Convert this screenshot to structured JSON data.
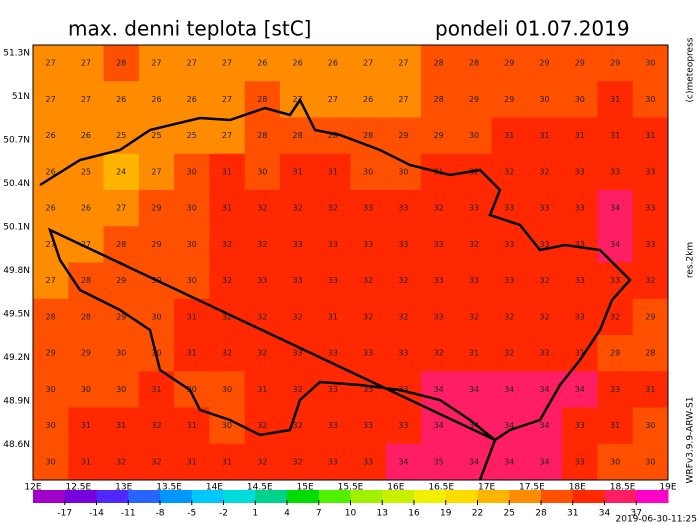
{
  "header": {
    "title": "max. denni teplota [stC]",
    "date": "pondeli 01.07.2019"
  },
  "side": {
    "copyright": "(c)meteopress",
    "resolution": "res.2km",
    "model": "WRFv3.9.9-ARW-S1",
    "run": "2019-06-30-11:25"
  },
  "map": {
    "latitude_labels": [
      "51.3N",
      "51N",
      "50.7N",
      "50.4N",
      "50.1N",
      "49.8N",
      "49.5N",
      "49.2N",
      "48.9N",
      "48.6N"
    ],
    "longitude_labels": [
      "12E",
      "12.5E",
      "13E",
      "13.5E",
      "14E",
      "14.5E",
      "15E",
      "15.5E",
      "16E",
      "16.5E",
      "17E",
      "17.5E",
      "18E",
      "18.5E",
      "19E"
    ],
    "values": [
      [
        27,
        27,
        28,
        27,
        27,
        27,
        26,
        26,
        26,
        27,
        27,
        28,
        28,
        29,
        29,
        29,
        29,
        30
      ],
      [
        27,
        27,
        26,
        26,
        26,
        27,
        28,
        27,
        27,
        26,
        27,
        28,
        29,
        29,
        30,
        30,
        31,
        30
      ],
      [
        26,
        26,
        25,
        25,
        25,
        27,
        28,
        28,
        28,
        28,
        29,
        29,
        30,
        31,
        31,
        31,
        31,
        31
      ],
      [
        26,
        25,
        24,
        27,
        30,
        31,
        30,
        31,
        31,
        30,
        30,
        31,
        32,
        32,
        32,
        33,
        33,
        33
      ],
      [
        26,
        26,
        27,
        29,
        30,
        31,
        32,
        32,
        32,
        33,
        33,
        32,
        33,
        33,
        33,
        33,
        34,
        33
      ],
      [
        27,
        27,
        28,
        29,
        30,
        32,
        32,
        33,
        33,
        33,
        33,
        33,
        32,
        33,
        33,
        33,
        34,
        33
      ],
      [
        27,
        28,
        29,
        30,
        30,
        32,
        33,
        33,
        33,
        32,
        32,
        33,
        33,
        33,
        32,
        33,
        33,
        32
      ],
      [
        28,
        28,
        29,
        30,
        31,
        32,
        32,
        32,
        31,
        32,
        32,
        33,
        32,
        32,
        32,
        33,
        32,
        29
      ],
      [
        29,
        29,
        30,
        30,
        31,
        32,
        32,
        33,
        33,
        33,
        33,
        32,
        31,
        32,
        33,
        31,
        29,
        28
      ],
      [
        30,
        30,
        30,
        31,
        30,
        30,
        31,
        32,
        33,
        33,
        33,
        34,
        34,
        34,
        34,
        34,
        33,
        31
      ],
      [
        30,
        31,
        31,
        32,
        31,
        30,
        32,
        32,
        33,
        33,
        33,
        34,
        34,
        34,
        34,
        33,
        31,
        30
      ],
      [
        30,
        31,
        32,
        32,
        31,
        31,
        32,
        32,
        33,
        33,
        34,
        35,
        34,
        34,
        34,
        33,
        30,
        30
      ]
    ]
  },
  "colorbar": {
    "ticks": [
      -17,
      -14,
      -11,
      -8,
      -5,
      -2,
      1,
      4,
      7,
      10,
      13,
      16,
      19,
      22,
      25,
      28,
      31,
      34,
      37
    ],
    "colors": [
      "#a000c8",
      "#7800dc",
      "#5028ff",
      "#2864ff",
      "#0096ff",
      "#00c8ff",
      "#00dcdc",
      "#00d28c",
      "#00dc00",
      "#50f000",
      "#a0f000",
      "#c8f000",
      "#f0f000",
      "#ffdc00",
      "#ffb400",
      "#ff8c00",
      "#ff5000",
      "#ff2800",
      "#ff1e64",
      "#ff00c8"
    ]
  }
}
